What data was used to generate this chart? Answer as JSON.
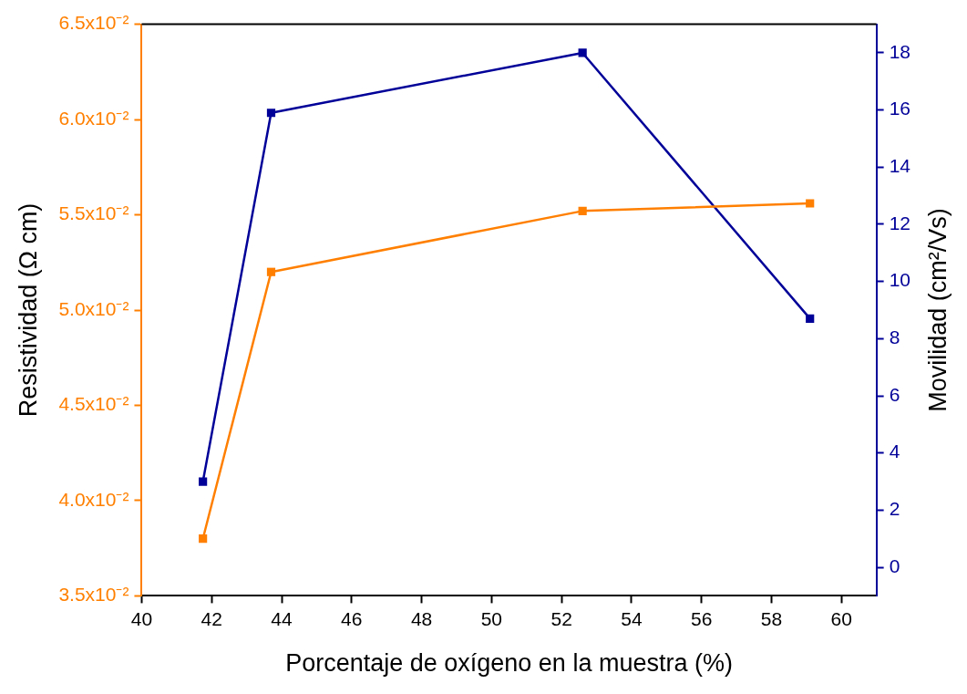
{
  "chart_data": {
    "type": "line",
    "xlabel": "Porcentaje de oxígeno en la muestra (%)",
    "ylabel": "Resistividad (Ω cm)",
    "y2label": "Movilidad (cm²/Vs)",
    "x": [
      41.75,
      43.7,
      52.6,
      59.1
    ],
    "series": [
      {
        "color": "#ff8000",
        "values": [
          0.038,
          0.052,
          0.0552,
          0.0556
        ]
      },
      {
        "color": "#000099",
        "values": [
          3.0,
          15.9,
          18.0,
          8.7
        ],
        "axis": "y2"
      }
    ],
    "xlim": [
      40,
      61
    ],
    "xticks": [
      40,
      42,
      44,
      46,
      48,
      50,
      52,
      54,
      56,
      58,
      60
    ],
    "ylim": [
      0.035,
      0.065
    ],
    "yticks": [
      {
        "value": 0.035,
        "label": "3.5x10⁻²"
      },
      {
        "value": 0.04,
        "label": "4.0x10⁻²"
      },
      {
        "value": 0.045,
        "label": "4.5x10⁻²"
      },
      {
        "value": 0.05,
        "label": "5.0x10⁻²"
      },
      {
        "value": 0.055,
        "label": "5.5x10⁻²"
      },
      {
        "value": 0.06,
        "label": "6.0x10⁻²"
      },
      {
        "value": 0.065,
        "label": "6.5x10⁻²"
      }
    ],
    "y2lim": [
      -1,
      19
    ],
    "y2ticks": [
      0,
      2,
      4,
      6,
      8,
      10,
      12,
      14,
      16,
      18
    ],
    "grid": false,
    "legend": false,
    "marker": "square",
    "line_style": "solid"
  }
}
